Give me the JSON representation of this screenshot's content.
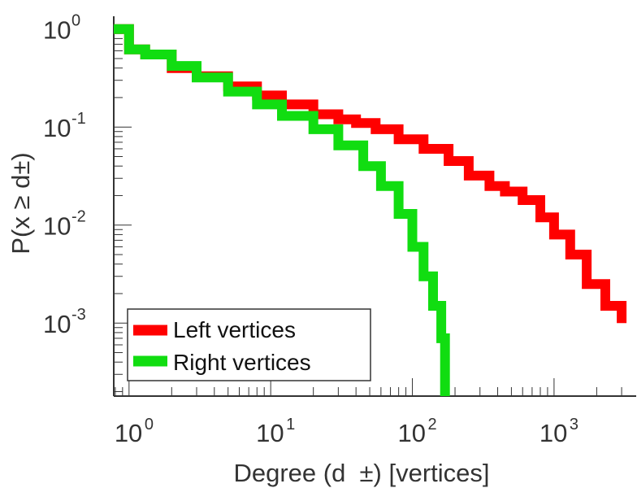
{
  "chart_data": {
    "type": "line",
    "title": "",
    "xlabel": "Degree (d  ±) [vertices]",
    "ylabel": "P(x ≥ d±)",
    "xscale": "log",
    "yscale": "log",
    "xlim": [
      0.78,
      3800
    ],
    "ylim": [
      0.00018,
      1.35
    ],
    "x_ticks": [
      {
        "base": "10",
        "exp": "0"
      },
      {
        "base": "10",
        "exp": "1"
      },
      {
        "base": "10",
        "exp": "2"
      },
      {
        "base": "10",
        "exp": "3"
      }
    ],
    "y_ticks": [
      {
        "base": "10",
        "exp": "0"
      },
      {
        "base": "10",
        "exp": "-1"
      },
      {
        "base": "10",
        "exp": "-2"
      },
      {
        "base": "10",
        "exp": "-3"
      }
    ],
    "legend": {
      "position": "bottom-left"
    },
    "series": [
      {
        "name": "Left vertices",
        "color": "#ff0000",
        "x": [
          0.75,
          1,
          1.3,
          2,
          3,
          5,
          8,
          12,
          20,
          30,
          40,
          55,
          80,
          120,
          180,
          250,
          350,
          450,
          600,
          800,
          1000,
          1300,
          1700,
          2300,
          3000
        ],
        "y": [
          1.0,
          0.62,
          0.55,
          0.4,
          0.33,
          0.26,
          0.21,
          0.17,
          0.135,
          0.12,
          0.11,
          0.095,
          0.075,
          0.06,
          0.045,
          0.032,
          0.025,
          0.022,
          0.018,
          0.012,
          0.008,
          0.005,
          0.0025,
          0.0015,
          0.001
        ]
      },
      {
        "name": "Right vertices",
        "color": "#11dd11",
        "x": [
          0.75,
          1,
          1.3,
          2,
          3,
          5,
          8,
          12,
          20,
          30,
          45,
          60,
          80,
          100,
          120,
          140,
          160,
          170
        ],
        "y": [
          1.0,
          0.62,
          0.55,
          0.42,
          0.32,
          0.23,
          0.17,
          0.13,
          0.095,
          0.065,
          0.04,
          0.025,
          0.013,
          0.006,
          0.003,
          0.0015,
          0.0007,
          0.00018
        ]
      }
    ]
  }
}
